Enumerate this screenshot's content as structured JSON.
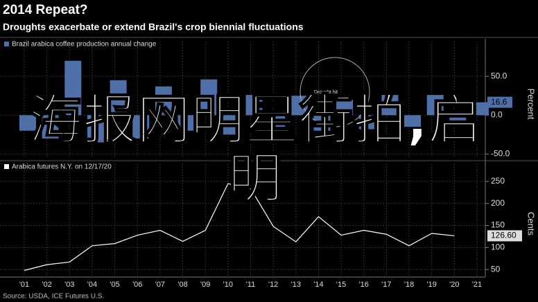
{
  "title": "2014 Repeat?",
  "subtitle": "Droughts exacerbate or extend Brazil's crop biennial fluctuations",
  "source": "Source: USDA, ICE Futures U.S.",
  "overlay_text": "海报网明星街拍,启明",
  "chart_data": [
    {
      "type": "bar",
      "series": [
        {
          "name": "Brazil arabica coffee production annual change",
          "color": "#4f6fa8",
          "values": [
            -20,
            -30,
            70,
            -35,
            45,
            -30,
            37,
            -20,
            46,
            -25,
            26,
            -15,
            25,
            -20,
            20,
            -18,
            26,
            -15,
            26,
            -10,
            16.6
          ],
          "value_labels": [
            null,
            null,
            null,
            null,
            null,
            null,
            null,
            null,
            null,
            null,
            null,
            null,
            null,
            null,
            null,
            null,
            null,
            null,
            null,
            null,
            "16.6"
          ]
        }
      ],
      "ylim": [
        -55,
        84
      ],
      "yticks": [
        {
          "value": 50,
          "label": "50.0"
        },
        {
          "value": 0,
          "label": "0.0"
        },
        {
          "value": -50,
          "label": "-50.0"
        }
      ],
      "y_label": "Percent",
      "annotation": "Drought hit",
      "grid": true
    },
    {
      "type": "line",
      "categories": [
        "'01",
        "'02",
        "'03",
        "'04",
        "'05",
        "'06",
        "'07",
        "'08",
        "'09",
        "'10",
        "'11",
        "'12",
        "'13",
        "'14",
        "'15",
        "'16",
        "'17",
        "'18",
        "'19",
        "'20",
        "'21"
      ],
      "series": [
        {
          "name": "Arabica futures N.Y. on 12/17/20",
          "color": "#ffffff",
          "values": [
            48,
            61,
            67,
            104,
            109,
            128,
            139,
            114,
            139,
            245,
            234,
            148,
            113,
            170,
            128,
            139,
            130,
            104,
            132,
            126.6,
            null
          ],
          "value_labels": [
            null,
            null,
            null,
            null,
            null,
            null,
            null,
            null,
            null,
            null,
            null,
            null,
            null,
            null,
            null,
            null,
            null,
            null,
            null,
            "126.60",
            null
          ]
        }
      ],
      "ylim": [
        36,
        272
      ],
      "yticks": [
        50,
        100,
        150,
        200,
        250
      ],
      "y_label": "Cents",
      "grid": true
    }
  ]
}
